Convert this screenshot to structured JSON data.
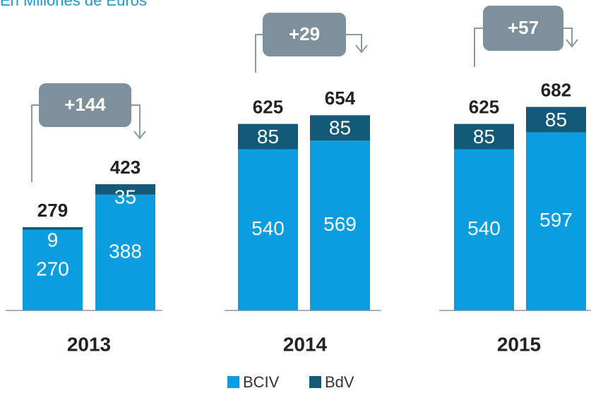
{
  "chart_data": {
    "type": "stacked_bar",
    "subtitle": "En Millones de Euros",
    "groups": [
      "2013",
      "2014",
      "2015"
    ],
    "series": [
      {
        "name": "BCIV",
        "color": "#0a9ee0",
        "values": [
          270,
          388,
          540,
          569,
          540,
          597
        ]
      },
      {
        "name": "BdV",
        "color": "#135a78",
        "values": [
          9,
          35,
          85,
          85,
          85,
          85
        ]
      }
    ],
    "totals": [
      279,
      423,
      625,
      654,
      625,
      682
    ],
    "annotations": [
      "+144",
      "+29",
      "+57"
    ]
  }
}
